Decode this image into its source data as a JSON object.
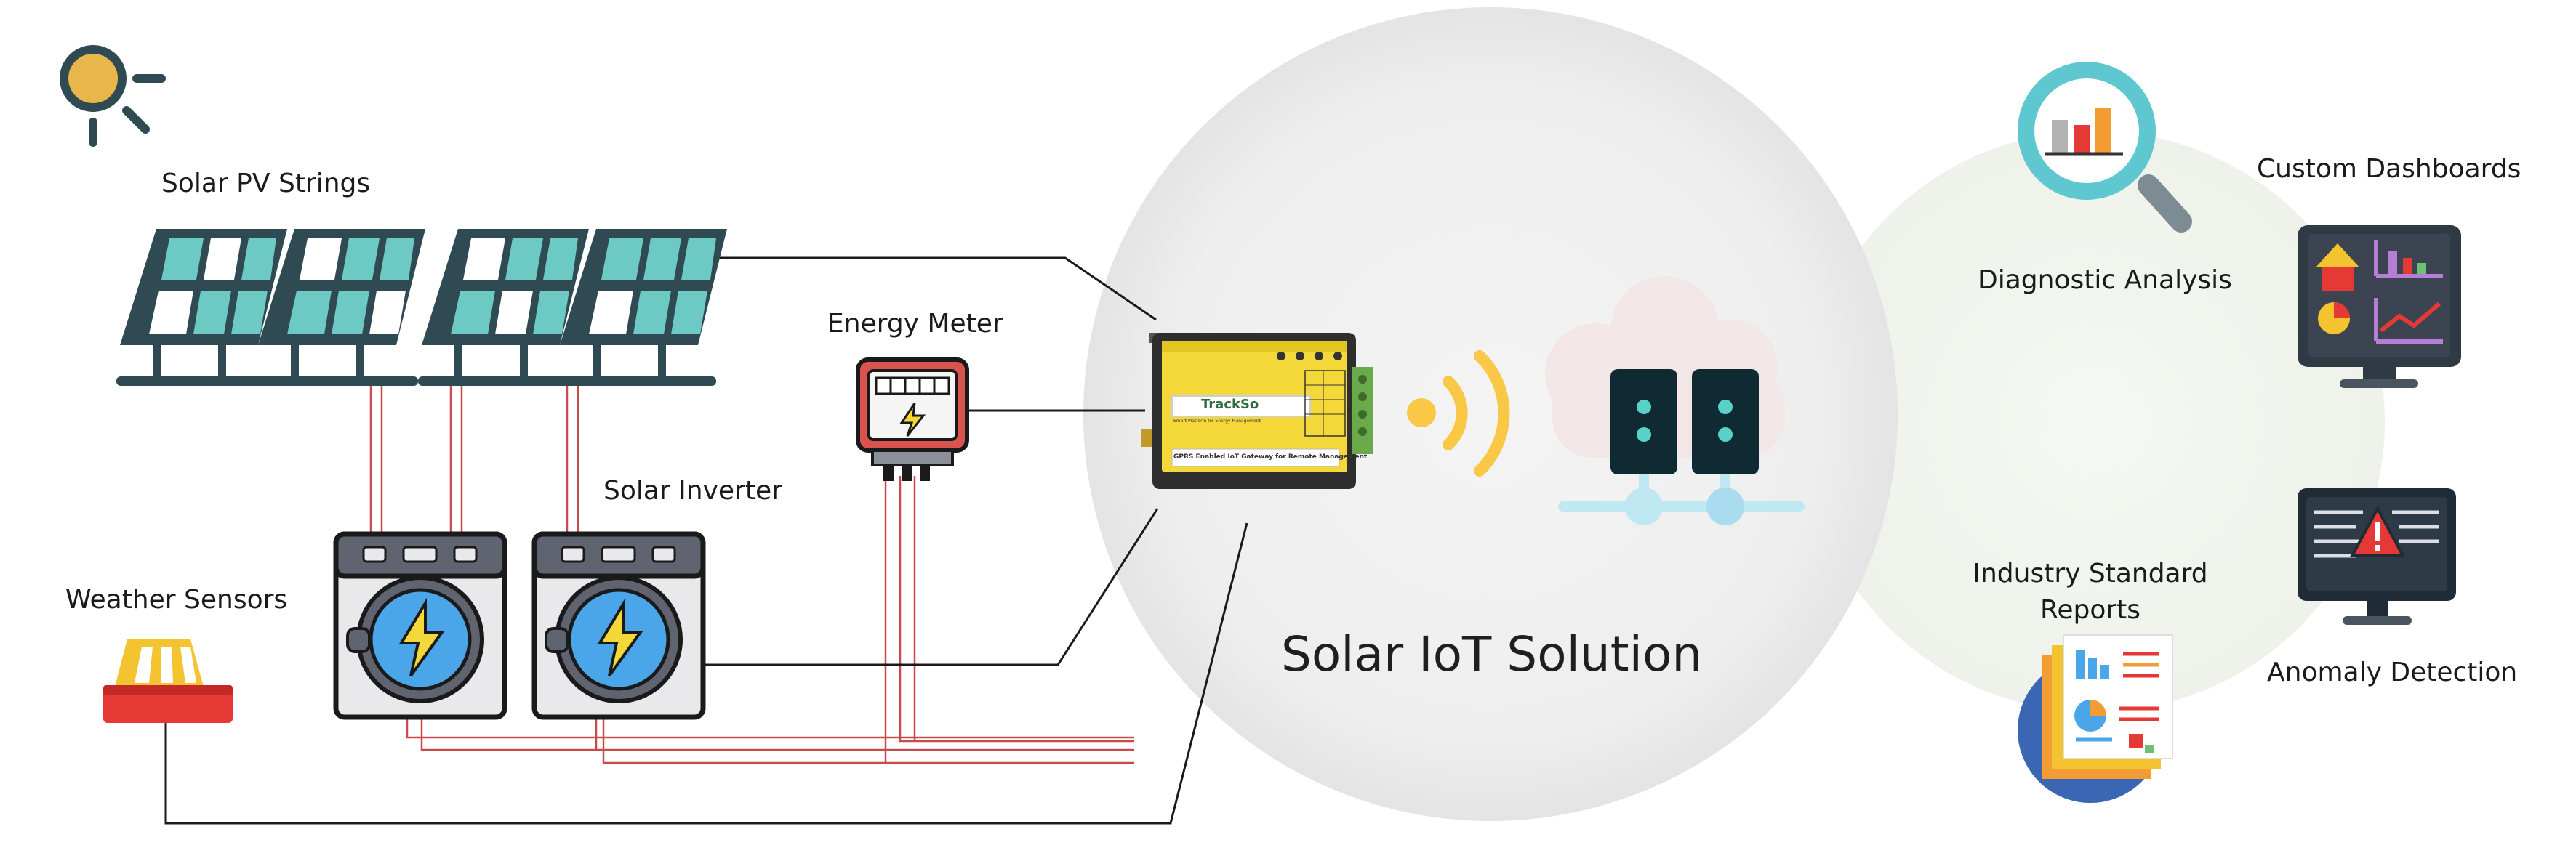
{
  "diagram": {
    "center_title": "Solar IoT Solution",
    "labels": {
      "solar_pv_strings": "Solar PV Strings",
      "energy_meter": "Energy Meter",
      "solar_inverter": "Solar Inverter",
      "weather_sensors": "Weather Sensors",
      "diagnostic_analysis": "Diagnostic Analysis",
      "custom_dashboards": "Custom Dashboards",
      "industry_standard_reports": "Industry Standard Reports",
      "anomaly_detection": "Anomaly Detection"
    },
    "gateway": {
      "brand": "TrackSo",
      "tagline": "Smart Platform for Energy Management",
      "footer": "GPRS Enabled IoT Gateway for Remote Management"
    },
    "colors": {
      "dark_slate": "#2f4a52",
      "panel_teal": "#6cc9c4",
      "gateway_yellow": "#f4d83a",
      "wifi_yellow": "#f9c846",
      "server_dark": "#0f2a33",
      "cloud_light": "#f3e6e6",
      "wire_red": "#c94a4a",
      "inverter_blue": "#4aa6e8",
      "weather_red": "#e53935"
    }
  }
}
